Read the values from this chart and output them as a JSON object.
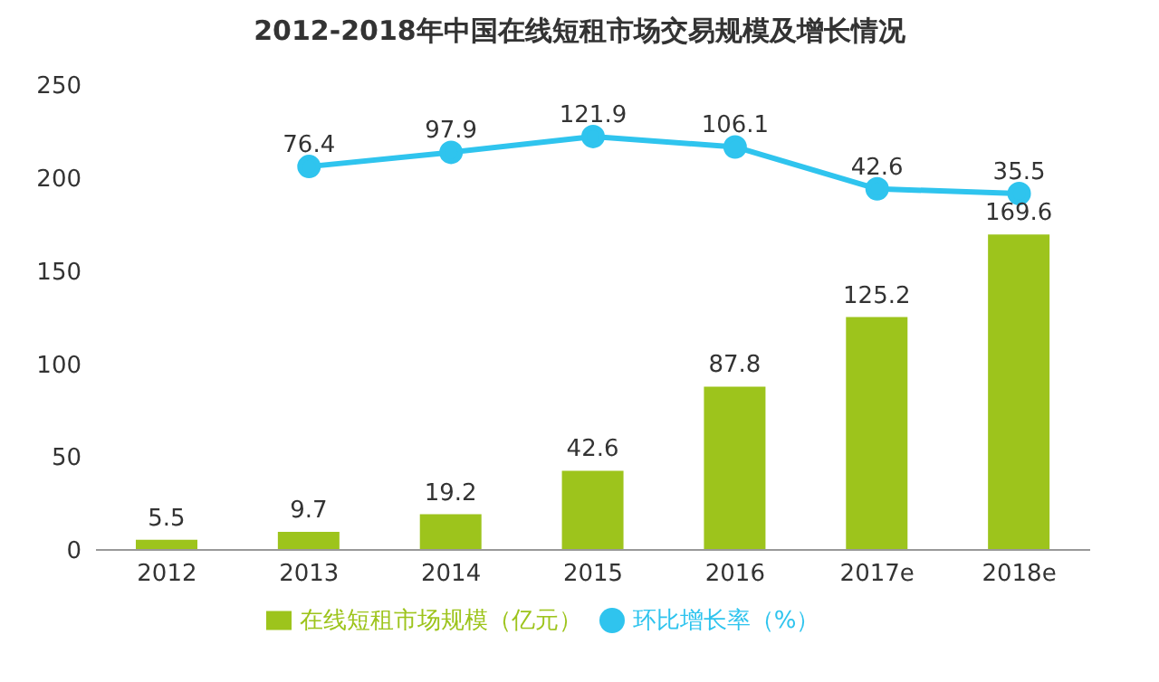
{
  "chart_data": {
    "type": "bar",
    "title": "2012-2018年中国在线短租市场交易规模及增长情况",
    "categories": [
      "2012",
      "2013",
      "2014",
      "2015",
      "2016",
      "2017e",
      "2018e"
    ],
    "series": [
      {
        "name": "在线短租市场规模（亿元）",
        "color": "#9dc41c",
        "values": [
          5.5,
          9.7,
          19.2,
          42.6,
          87.8,
          125.2,
          169.6
        ]
      },
      {
        "name": "环比增长率（%）",
        "type": "line",
        "axis": "y2",
        "color": "#2fc4ee",
        "values": [
          null,
          76.4,
          97.9,
          121.9,
          106.1,
          42.6,
          35.5
        ]
      }
    ],
    "ylim": [
      0,
      250
    ],
    "yticks": [
      0,
      50,
      100,
      150,
      200,
      250
    ],
    "data_labels": true,
    "legend": "bottom",
    "marker": "circle"
  }
}
